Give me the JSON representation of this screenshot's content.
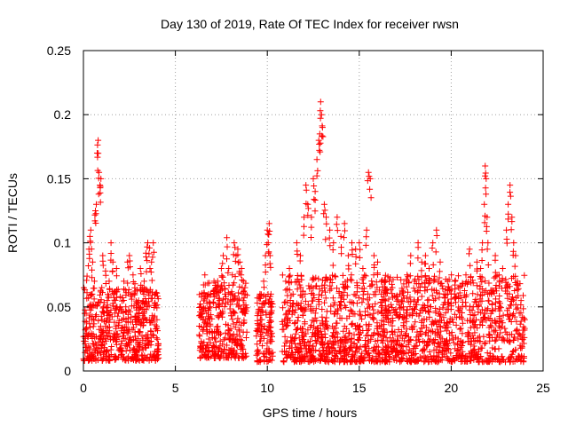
{
  "chart_data": {
    "type": "scatter",
    "title": "Day 130 of 2019, Rate Of TEC Index for receiver rwsn",
    "xlabel": "GPS time / hours",
    "ylabel": "ROTI / TECUs",
    "xlim": [
      0,
      25
    ],
    "ylim": [
      0,
      0.25
    ],
    "xticks": [
      0,
      5,
      10,
      15,
      20,
      25
    ],
    "xtick_labels": [
      "0",
      "5",
      "10",
      "15",
      "20",
      "25"
    ],
    "yticks": [
      0,
      0.05,
      0.1,
      0.15,
      0.2,
      0.25
    ],
    "ytick_labels": [
      "0",
      "0.05",
      "0.1",
      "0.15",
      "0.2",
      "0.25"
    ],
    "grid": true,
    "marker": "+",
    "color": "#ff0000",
    "series": [
      {
        "name": "ROTI",
        "points": [
          [
            0.1,
            0.032
          ],
          [
            0.15,
            0.045
          ],
          [
            0.2,
            0.074
          ],
          [
            0.25,
            0.028
          ],
          [
            0.3,
            0.095
          ],
          [
            0.35,
            0.105
          ],
          [
            0.4,
            0.11
          ],
          [
            0.45,
            0.06
          ],
          [
            0.5,
            0.085
          ],
          [
            0.55,
            0.04
          ],
          [
            0.6,
            0.07
          ],
          [
            0.65,
            0.125
          ],
          [
            0.7,
            0.13
          ],
          [
            0.75,
            0.17
          ],
          [
            0.8,
            0.18
          ],
          [
            0.85,
            0.155
          ],
          [
            0.9,
            0.145
          ],
          [
            0.95,
            0.15
          ],
          [
            1.0,
            0.065
          ],
          [
            1.05,
            0.09
          ],
          [
            1.1,
            0.05
          ],
          [
            1.2,
            0.078
          ],
          [
            1.3,
            0.055
          ],
          [
            1.4,
            0.07
          ],
          [
            1.5,
            0.1
          ],
          [
            1.6,
            0.085
          ],
          [
            1.7,
            0.062
          ],
          [
            1.8,
            0.08
          ],
          [
            1.9,
            0.045
          ],
          [
            2.0,
            0.058
          ],
          [
            2.1,
            0.04
          ],
          [
            2.2,
            0.07
          ],
          [
            2.3,
            0.05
          ],
          [
            2.4,
            0.085
          ],
          [
            2.5,
            0.09
          ],
          [
            2.6,
            0.06
          ],
          [
            2.7,
            0.075
          ],
          [
            2.8,
            0.068
          ],
          [
            2.9,
            0.052
          ],
          [
            3.0,
            0.055
          ],
          [
            3.1,
            0.08
          ],
          [
            3.2,
            0.065
          ],
          [
            3.3,
            0.07
          ],
          [
            3.4,
            0.092
          ],
          [
            3.5,
            0.1
          ],
          [
            3.6,
            0.096
          ],
          [
            3.7,
            0.085
          ],
          [
            3.8,
            0.1
          ],
          [
            3.9,
            0.06
          ],
          [
            4.0,
            0.04
          ],
          [
            6.3,
            0.035
          ],
          [
            6.4,
            0.05
          ],
          [
            6.5,
            0.04
          ],
          [
            6.6,
            0.075
          ],
          [
            6.7,
            0.045
          ],
          [
            6.8,
            0.06
          ],
          [
            6.9,
            0.05
          ],
          [
            7.0,
            0.03
          ],
          [
            7.1,
            0.07
          ],
          [
            7.2,
            0.065
          ],
          [
            7.3,
            0.07
          ],
          [
            7.4,
            0.055
          ],
          [
            7.5,
            0.08
          ],
          [
            7.6,
            0.09
          ],
          [
            7.7,
            0.06
          ],
          [
            7.8,
            0.104
          ],
          [
            7.9,
            0.08
          ],
          [
            8.0,
            0.06
          ],
          [
            8.1,
            0.075
          ],
          [
            8.2,
            0.1
          ],
          [
            8.3,
            0.09
          ],
          [
            8.4,
            0.095
          ],
          [
            8.5,
            0.085
          ],
          [
            8.6,
            0.08
          ],
          [
            8.7,
            0.07
          ],
          [
            8.8,
            0.06
          ],
          [
            9.5,
            0.045
          ],
          [
            9.6,
            0.06
          ],
          [
            9.7,
            0.04
          ],
          [
            9.8,
            0.07
          ],
          [
            9.9,
            0.09
          ],
          [
            10.0,
            0.11
          ],
          [
            10.05,
            0.1
          ],
          [
            10.1,
            0.115
          ],
          [
            10.15,
            0.09
          ],
          [
            10.2,
            0.06
          ],
          [
            11.0,
            0.07
          ],
          [
            11.2,
            0.08
          ],
          [
            11.4,
            0.06
          ],
          [
            11.6,
            0.1
          ],
          [
            11.8,
            0.09
          ],
          [
            12.0,
            0.12
          ],
          [
            12.1,
            0.145
          ],
          [
            12.2,
            0.13
          ],
          [
            12.4,
            0.12
          ],
          [
            12.5,
            0.15
          ],
          [
            12.6,
            0.14
          ],
          [
            12.7,
            0.165
          ],
          [
            12.8,
            0.18
          ],
          [
            12.85,
            0.185
          ],
          [
            12.9,
            0.21
          ],
          [
            12.95,
            0.2
          ],
          [
            13.0,
            0.19
          ],
          [
            13.1,
            0.13
          ],
          [
            13.2,
            0.12
          ],
          [
            13.4,
            0.11
          ],
          [
            13.6,
            0.1
          ],
          [
            13.8,
            0.12
          ],
          [
            14.0,
            0.105
          ],
          [
            14.2,
            0.115
          ],
          [
            14.4,
            0.09
          ],
          [
            14.6,
            0.1
          ],
          [
            14.8,
            0.095
          ],
          [
            15.0,
            0.1
          ],
          [
            15.2,
            0.08
          ],
          [
            15.4,
            0.11
          ],
          [
            15.5,
            0.155
          ],
          [
            15.6,
            0.15
          ],
          [
            15.8,
            0.09
          ],
          [
            16.0,
            0.085
          ],
          [
            16.2,
            0.06
          ],
          [
            16.4,
            0.07
          ],
          [
            16.6,
            0.05
          ],
          [
            16.8,
            0.065
          ],
          [
            17.0,
            0.058
          ],
          [
            17.2,
            0.06
          ],
          [
            17.4,
            0.05
          ],
          [
            17.6,
            0.075
          ],
          [
            17.8,
            0.09
          ],
          [
            18.0,
            0.07
          ],
          [
            18.2,
            0.1
          ],
          [
            18.4,
            0.085
          ],
          [
            18.6,
            0.09
          ],
          [
            18.8,
            0.08
          ],
          [
            19.0,
            0.1
          ],
          [
            19.2,
            0.11
          ],
          [
            19.4,
            0.085
          ],
          [
            19.6,
            0.06
          ],
          [
            19.8,
            0.07
          ],
          [
            20.0,
            0.06
          ],
          [
            20.2,
            0.07
          ],
          [
            20.4,
            0.065
          ],
          [
            20.6,
            0.05
          ],
          [
            20.8,
            0.075
          ],
          [
            21.0,
            0.095
          ],
          [
            21.2,
            0.05
          ],
          [
            21.4,
            0.085
          ],
          [
            21.6,
            0.08
          ],
          [
            21.7,
            0.1
          ],
          [
            21.8,
            0.13
          ],
          [
            21.85,
            0.16
          ],
          [
            21.9,
            0.15
          ],
          [
            21.95,
            0.12
          ],
          [
            22.0,
            0.1
          ],
          [
            22.2,
            0.06
          ],
          [
            22.4,
            0.09
          ],
          [
            22.6,
            0.075
          ],
          [
            22.8,
            0.08
          ],
          [
            23.0,
            0.11
          ],
          [
            23.1,
            0.13
          ],
          [
            23.2,
            0.145
          ],
          [
            23.3,
            0.12
          ],
          [
            23.4,
            0.1
          ],
          [
            23.5,
            0.09
          ],
          [
            23.6,
            0.07
          ],
          [
            23.8,
            0.055
          ],
          [
            24.0,
            0.04
          ]
        ]
      }
    ],
    "density_bands": [
      {
        "start": 0.0,
        "end": 4.1,
        "y_low": 0.008,
        "y_high": 0.065
      },
      {
        "start": 6.3,
        "end": 8.9,
        "y_low": 0.01,
        "y_high": 0.07
      },
      {
        "start": 9.4,
        "end": 10.3,
        "y_low": 0.007,
        "y_high": 0.06
      },
      {
        "start": 10.8,
        "end": 24.0,
        "y_low": 0.007,
        "y_high": 0.075
      }
    ]
  }
}
